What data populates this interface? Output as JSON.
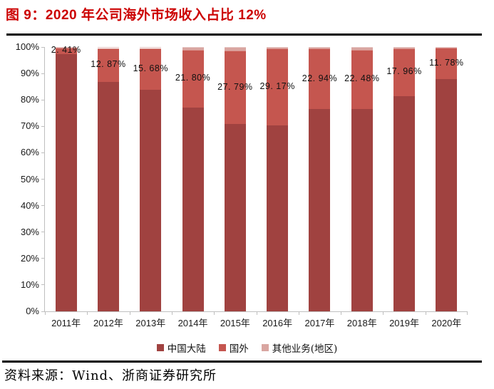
{
  "header": {
    "title": "图 9：2020 年公司海外市场收入占比 12%"
  },
  "footer": {
    "source": "资料来源：Wind、浙商证券研究所"
  },
  "colors": {
    "title_red": "#CC0000",
    "mainland": "#A04240",
    "foreign": "#C5564F",
    "other": "#D9A6A1",
    "axis_gray": "#BFBFBF",
    "rule_black": "#000000",
    "label_text": "#111111"
  },
  "chart_data": {
    "type": "bar",
    "stacked": true,
    "stack_unit": "percent_of_total",
    "title": "2020 年公司海外市场收入占比 12%",
    "categories": [
      "2011年",
      "2012年",
      "2013年",
      "2014年",
      "2015年",
      "2016年",
      "2017年",
      "2018年",
      "2019年",
      "2020年"
    ],
    "series": [
      {
        "name": "中国大陆",
        "color": "#A04240",
        "values": [
          97.39,
          86.73,
          83.92,
          77.2,
          70.81,
          70.23,
          76.46,
          76.52,
          81.54,
          87.92
        ]
      },
      {
        "name": "国外",
        "color": "#C5564F",
        "values": [
          2.41,
          12.87,
          15.68,
          21.8,
          27.79,
          29.17,
          22.94,
          22.48,
          17.96,
          11.78
        ]
      },
      {
        "name": "其他业务(地区)",
        "color": "#D9A6A1",
        "values": [
          0.2,
          0.4,
          0.4,
          1.0,
          1.4,
          0.6,
          0.6,
          1.0,
          0.5,
          0.3
        ]
      }
    ],
    "data_labels": [
      "2. 41%",
      "12. 87%",
      "15. 68%",
      "21. 80%",
      "27. 79%",
      "29. 17%",
      "22. 94%",
      "22. 48%",
      "17. 96%",
      "11. 78%"
    ],
    "data_label_series": "国外",
    "y_ticks": [
      "0%",
      "10%",
      "20%",
      "30%",
      "40%",
      "50%",
      "60%",
      "70%",
      "80%",
      "90%",
      "100%"
    ],
    "ylim": [
      0,
      100
    ],
    "grid": false,
    "legend_position": "bottom"
  }
}
